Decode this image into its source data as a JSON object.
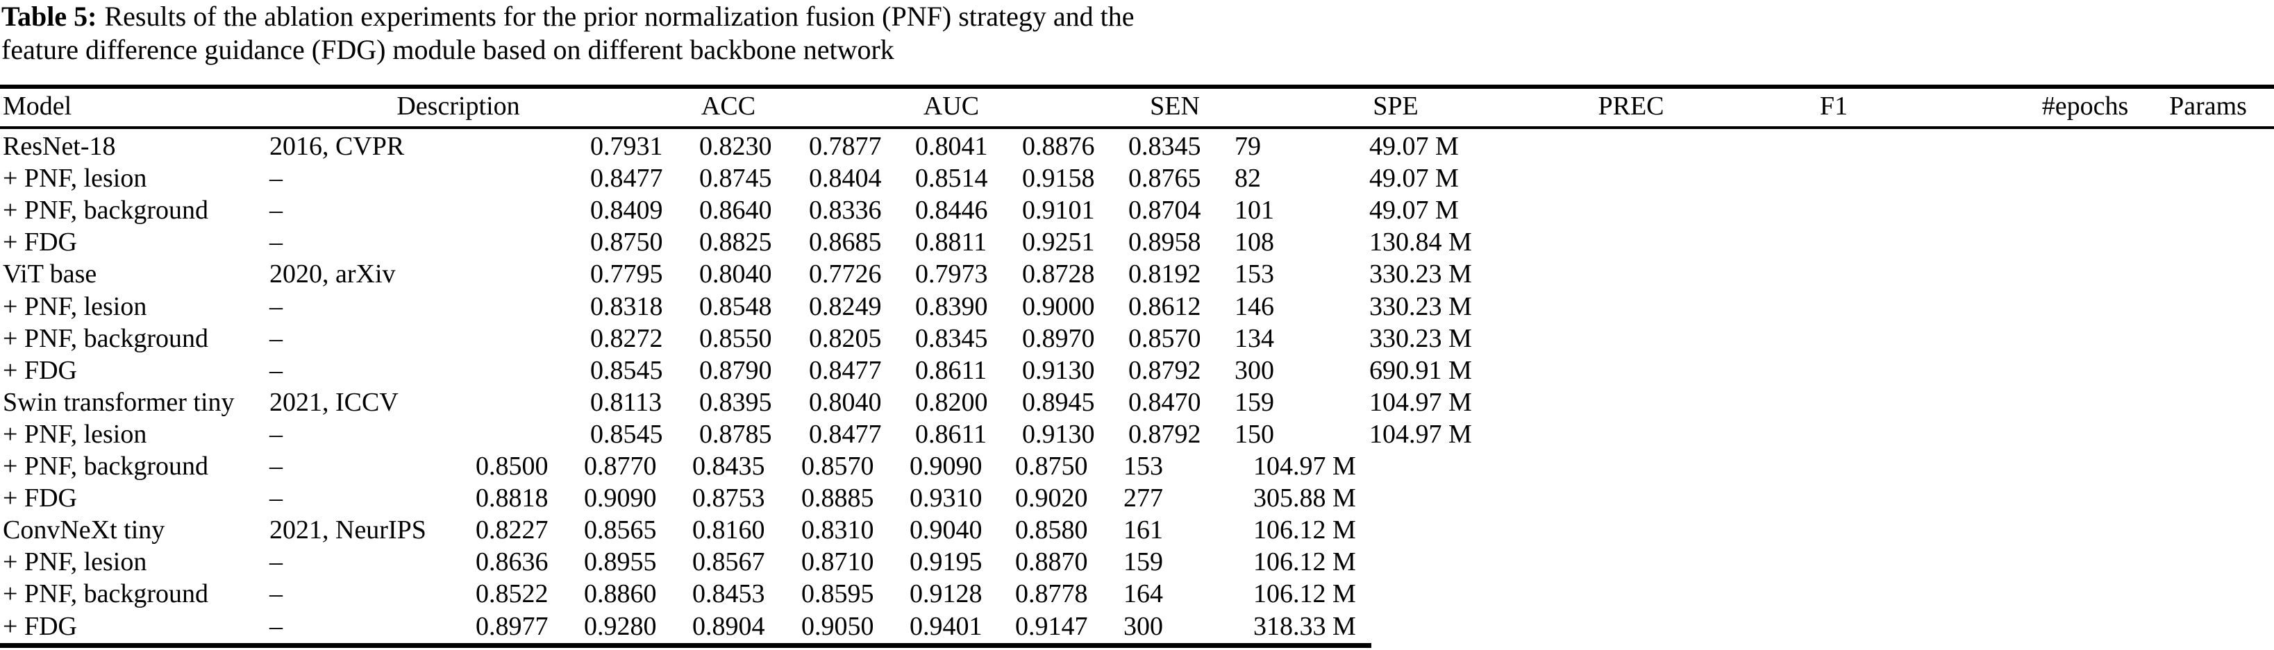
{
  "caption": {
    "label": "Table 5:",
    "line1": "Results of the ablation experiments for the prior normalization fusion (PNF) strategy and the",
    "line2": "feature difference guidance (FDG) module based on different backbone network"
  },
  "table": {
    "columns": [
      "Model",
      "Description",
      "ACC",
      "AUC",
      "SEN",
      "SPE",
      "PREC",
      "F1",
      "#epochs",
      "Params"
    ],
    "rows": [
      {
        "model": "ResNet-18",
        "description": "2016, CVPR",
        "values": [
          "0.7931",
          "0.8230",
          "0.7877",
          "0.8041",
          "0.8876",
          "0.8345",
          "79",
          "49.07 M"
        ]
      },
      {
        "model": "+ PNF, lesion",
        "description": "–",
        "values": [
          "0.8477",
          "0.8745",
          "0.8404",
          "0.8514",
          "0.9158",
          "0.8765",
          "82",
          "49.07 M"
        ]
      },
      {
        "model": "+ PNF, background",
        "description": "–",
        "values": [
          "0.8409",
          "0.8640",
          "0.8336",
          "0.8446",
          "0.9101",
          "0.8704",
          "101",
          "49.07 M"
        ]
      },
      {
        "model": "+ FDG",
        "description": "–",
        "values": [
          "0.8750",
          "0.8825",
          "0.8685",
          "0.8811",
          "0.9251",
          "0.8958",
          "108",
          "130.84 M"
        ]
      },
      {
        "model": "ViT base",
        "description": "2020, arXiv",
        "values": [
          "0.7795",
          "0.8040",
          "0.7726",
          "0.7973",
          "0.8728",
          "0.8192",
          "153",
          "330.23 M"
        ]
      },
      {
        "model": "+ PNF, lesion",
        "description": "–",
        "values": [
          "0.8318",
          "0.8548",
          "0.8249",
          "0.8390",
          "0.9000",
          "0.8612",
          "146",
          "330.23 M"
        ]
      },
      {
        "model": "+ PNF, background",
        "description": "–",
        "values": [
          "0.8272",
          "0.8550",
          "0.8205",
          "0.8345",
          "0.8970",
          "0.8570",
          "134",
          "330.23 M"
        ]
      },
      {
        "model": "+ FDG",
        "description": "–",
        "values": [
          "0.8545",
          "0.8790",
          "0.8477",
          "0.8611",
          "0.9130",
          "0.8792",
          "300",
          "690.91 M"
        ]
      },
      {
        "model": "Swin transformer tiny",
        "description": "2021, ICCV",
        "values": [
          "0.8113",
          "0.8395",
          "0.8040",
          "0.8200",
          "0.8945",
          "0.8470",
          "159",
          "104.97 M"
        ]
      },
      {
        "model": "+ PNF, lesion",
        "description": "–",
        "values": [
          "0.8545",
          "0.8785",
          "0.8477",
          "0.8611",
          "0.9130",
          "0.8792",
          "150",
          "104.97 M"
        ]
      },
      {
        "model": "+ PNF, background",
        "description": "–",
        "values": [
          "0.8500",
          "0.8770",
          "0.8435",
          "0.8570",
          "0.9090",
          "0.8750",
          "153",
          "104.97 M"
        ]
      },
      {
        "model": "+ FDG",
        "description": "–",
        "values": [
          "0.8818",
          "0.9090",
          "0.8753",
          "0.8885",
          "0.9310",
          "0.9020",
          "277",
          "305.88 M"
        ]
      },
      {
        "model": "ConvNeXt tiny",
        "description": "2021, NeurIPS",
        "values": [
          "0.8227",
          "0.8565",
          "0.8160",
          "0.8310",
          "0.9040",
          "0.8580",
          "161",
          "106.12 M"
        ]
      },
      {
        "model": "+ PNF, lesion",
        "description": "–",
        "values": [
          "0.8636",
          "0.8955",
          "0.8567",
          "0.8710",
          "0.9195",
          "0.8870",
          "159",
          "106.12 M"
        ]
      },
      {
        "model": "+ PNF, background",
        "description": "–",
        "values": [
          "0.8522",
          "0.8860",
          "0.8453",
          "0.8595",
          "0.9128",
          "0.8778",
          "164",
          "106.12 M"
        ]
      },
      {
        "model": "+ FDG",
        "description": "–",
        "values": [
          "0.8977",
          "0.9280",
          "0.8904",
          "0.9050",
          "0.9401",
          "0.9147",
          "300",
          "318.33 M"
        ]
      }
    ]
  }
}
